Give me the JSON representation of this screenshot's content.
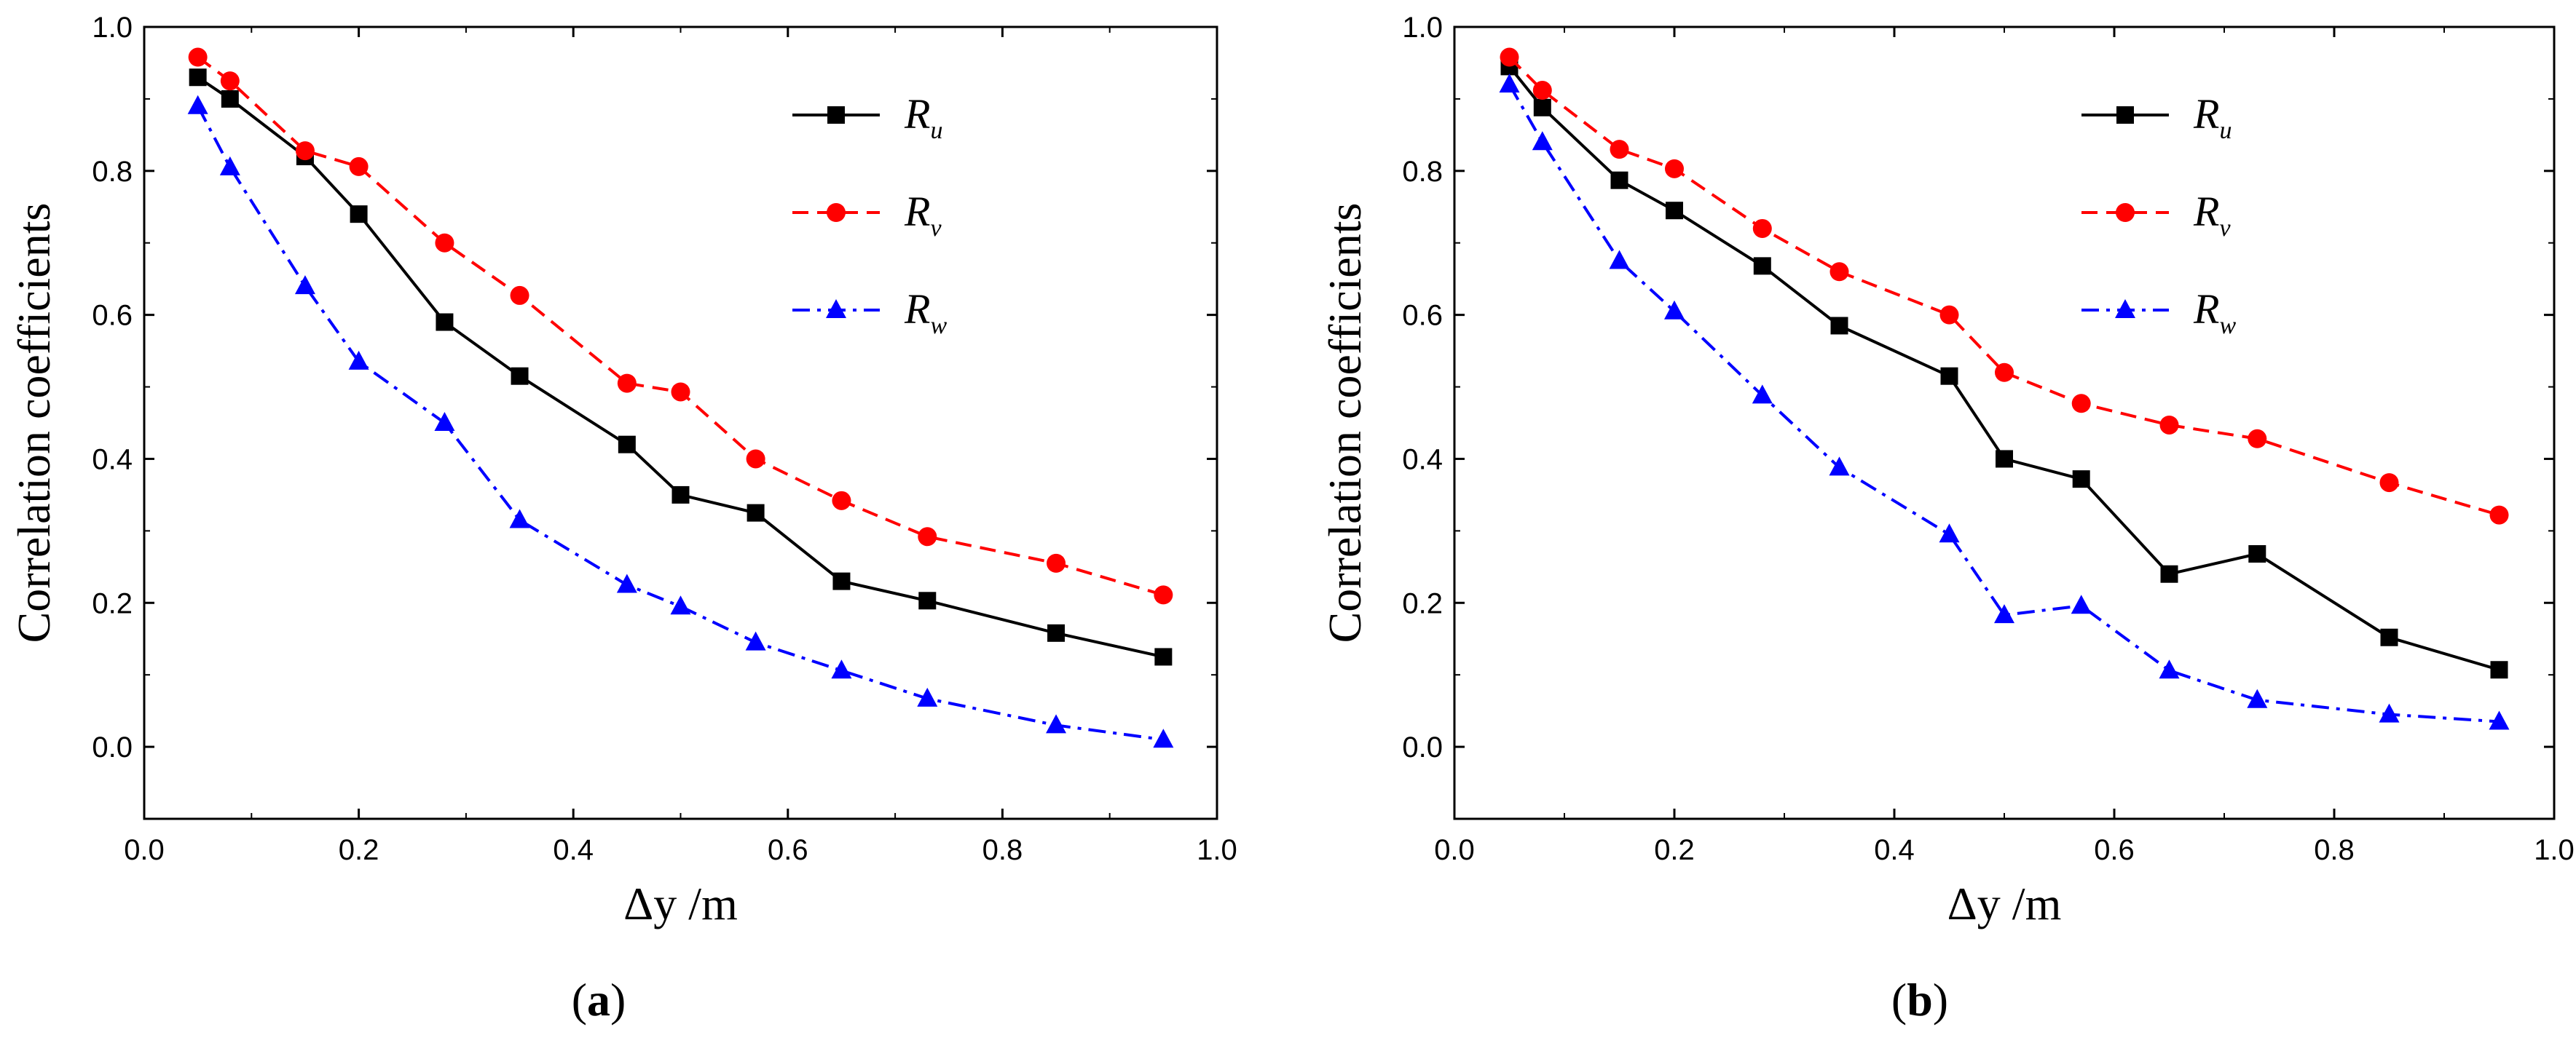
{
  "chart_data": [
    {
      "type": "line",
      "panel": "a",
      "caption_letter": "a",
      "xlabel": "Δy /m",
      "ylabel": "Correlation coefficients",
      "xlim": [
        0.0,
        1.0
      ],
      "ylim": [
        -0.1,
        1.0
      ],
      "xticks": [
        "0.0",
        "0.2",
        "0.4",
        "0.6",
        "0.8",
        "1.0"
      ],
      "yticks": [
        "0.0",
        "0.2",
        "0.4",
        "0.6",
        "0.8",
        "1.0"
      ],
      "legend_position": "top-right",
      "x": [
        0.05,
        0.08,
        0.15,
        0.2,
        0.28,
        0.35,
        0.45,
        0.5,
        0.57,
        0.65,
        0.73,
        0.85,
        0.95
      ],
      "series": [
        {
          "name": "Ru",
          "base": "R",
          "sub": "u",
          "color": "#000000",
          "dash": "solid",
          "marker": "square",
          "values": [
            0.93,
            0.9,
            0.82,
            0.74,
            0.59,
            0.515,
            0.42,
            0.35,
            0.325,
            0.23,
            0.203,
            0.158,
            0.125
          ]
        },
        {
          "name": "Rv",
          "base": "R",
          "sub": "v",
          "color": "#ff0000",
          "dash": "dashed",
          "marker": "circle",
          "values": [
            0.958,
            0.925,
            0.828,
            0.806,
            0.7,
            0.627,
            0.505,
            0.493,
            0.4,
            0.342,
            0.292,
            0.255,
            0.211
          ]
        },
        {
          "name": "Rw",
          "base": "R",
          "sub": "w",
          "color": "#0000ff",
          "dash": "dashdot",
          "marker": "triangle",
          "values": [
            0.89,
            0.805,
            0.64,
            0.535,
            0.45,
            0.315,
            0.225,
            0.195,
            0.145,
            0.106,
            0.067,
            0.03,
            0.01
          ]
        }
      ]
    },
    {
      "type": "line",
      "panel": "b",
      "caption_letter": "b",
      "xlabel": "Δy /m",
      "ylabel": "Correlation coefficients",
      "xlim": [
        0.0,
        1.0
      ],
      "ylim": [
        -0.1,
        1.0
      ],
      "xticks": [
        "0.0",
        "0.2",
        "0.4",
        "0.6",
        "0.8",
        "1.0"
      ],
      "yticks": [
        "0.0",
        "0.2",
        "0.4",
        "0.6",
        "0.8",
        "1.0"
      ],
      "legend_position": "top-right",
      "x": [
        0.05,
        0.08,
        0.15,
        0.2,
        0.28,
        0.35,
        0.45,
        0.5,
        0.57,
        0.65,
        0.73,
        0.85,
        0.95
      ],
      "series": [
        {
          "name": "Ru",
          "base": "R",
          "sub": "u",
          "color": "#000000",
          "dash": "solid",
          "marker": "square",
          "values": [
            0.945,
            0.888,
            0.787,
            0.745,
            0.668,
            0.585,
            0.515,
            0.4,
            0.372,
            0.24,
            0.268,
            0.152,
            0.107
          ]
        },
        {
          "name": "Rv",
          "base": "R",
          "sub": "v",
          "color": "#ff0000",
          "dash": "dashed",
          "marker": "circle",
          "values": [
            0.958,
            0.912,
            0.83,
            0.803,
            0.72,
            0.66,
            0.6,
            0.52,
            0.477,
            0.447,
            0.428,
            0.367,
            0.322
          ]
        },
        {
          "name": "Rw",
          "base": "R",
          "sub": "w",
          "color": "#0000ff",
          "dash": "dashdot",
          "marker": "triangle",
          "values": [
            0.92,
            0.84,
            0.675,
            0.605,
            0.488,
            0.388,
            0.295,
            0.183,
            0.196,
            0.106,
            0.065,
            0.045,
            0.035
          ]
        }
      ]
    }
  ]
}
